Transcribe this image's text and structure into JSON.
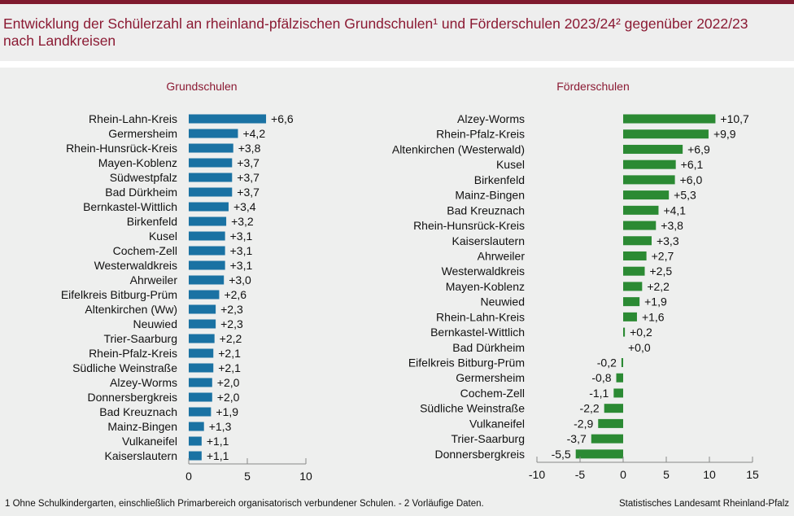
{
  "title": "Entwicklung der Schülerzahl an rheinland-pfälzischen Grundschulen¹ und Förderschulen 2023/24² gegenüber 2022/23 nach Landkreisen",
  "footnote": "1 Ohne Schulkindergarten, einschließlich Primarbereich organisatorisch verbundener Schulen.  - 2 Vorläufige Daten.",
  "source": "Statistisches Landesamt Rheinland-Pfalz",
  "colors": {
    "grund": "#1a72a3",
    "foerder": "#2b8a33",
    "title": "#8b1a33"
  },
  "chart_data": [
    {
      "type": "bar",
      "orientation": "horizontal",
      "title": "Grundschulen",
      "xlim": [
        0,
        10
      ],
      "xticks": [
        "0",
        "5",
        "10"
      ],
      "xtick_values": [
        0,
        5,
        10
      ],
      "categories": [
        "Rhein-Lahn-Kreis",
        "Germersheim",
        "Rhein-Hunsrück-Kreis",
        "Mayen-Koblenz",
        "Südwestpfalz",
        "Bad Dürkheim",
        "Bernkastel-Wittlich",
        "Birkenfeld",
        "Kusel",
        "Cochem-Zell",
        "Westerwaldkreis",
        "Ahrweiler",
        "Eifelkreis Bitburg-Prüm",
        "Altenkirchen (Ww)",
        "Neuwied",
        "Trier-Saarburg",
        "Rhein-Pfalz-Kreis",
        "Südliche Weinstraße",
        "Alzey-Worms",
        "Donnersbergkreis",
        "Bad Kreuznach",
        "Mainz-Bingen",
        "Vulkaneifel",
        "Kaiserslautern"
      ],
      "values": [
        6.6,
        4.2,
        3.8,
        3.7,
        3.7,
        3.7,
        3.4,
        3.2,
        3.1,
        3.1,
        3.1,
        3.0,
        2.6,
        2.3,
        2.3,
        2.2,
        2.1,
        2.1,
        2.0,
        2.0,
        1.9,
        1.3,
        1.1,
        1.1
      ],
      "labels": [
        "+6,6",
        "+4,2",
        "+3,8",
        "+3,7",
        "+3,7",
        "+3,7",
        "+3,4",
        "+3,2",
        "+3,1",
        "+3,1",
        "+3,1",
        "+3,0",
        "+2,6",
        "+2,3",
        "+2,3",
        "+2,2",
        "+2,1",
        "+2,1",
        "+2,0",
        "+2,0",
        "+1,9",
        "+1,3",
        "+1,1",
        "+1,1"
      ]
    },
    {
      "type": "bar",
      "orientation": "horizontal",
      "title": "Förderschulen",
      "xlim": [
        -10,
        15
      ],
      "xticks": [
        "-10",
        "-5",
        "0",
        "5",
        "10",
        "15"
      ],
      "xtick_values": [
        -10,
        -5,
        0,
        5,
        10,
        15
      ],
      "categories": [
        "Alzey-Worms",
        "Rhein-Pfalz-Kreis",
        "Altenkirchen (Westerwald)",
        "Kusel",
        "Birkenfeld",
        "Mainz-Bingen",
        "Bad Kreuznach",
        "Rhein-Hunsrück-Kreis",
        "Kaiserslautern",
        "Ahrweiler",
        "Westerwaldkreis",
        "Mayen-Koblenz",
        "Neuwied",
        "Rhein-Lahn-Kreis",
        "Bernkastel-Wittlich",
        "Bad Dürkheim",
        "Eifelkreis Bitburg-Prüm",
        "Germersheim",
        "Cochem-Zell",
        "Südliche Weinstraße",
        "Vulkaneifel",
        "Trier-Saarburg",
        "Donnersbergkreis"
      ],
      "values": [
        10.7,
        9.9,
        6.9,
        6.1,
        6.0,
        5.3,
        4.1,
        3.8,
        3.3,
        2.7,
        2.5,
        2.2,
        1.9,
        1.6,
        0.2,
        0.0,
        -0.2,
        -0.8,
        -1.1,
        -2.2,
        -2.9,
        -3.7,
        -5.5
      ],
      "labels": [
        "+10,7",
        "+9,9",
        "+6,9",
        "+6,1",
        "+6,0",
        "+5,3",
        "+4,1",
        "+3,8",
        "+3,3",
        "+2,7",
        "+2,5",
        "+2,2",
        "+1,9",
        "+1,6",
        "+0,2",
        "+0,0",
        "-0,2",
        "-0,8",
        "-1,1",
        "-2,2",
        "-2,9",
        "-3,7",
        "-5,5"
      ]
    }
  ]
}
